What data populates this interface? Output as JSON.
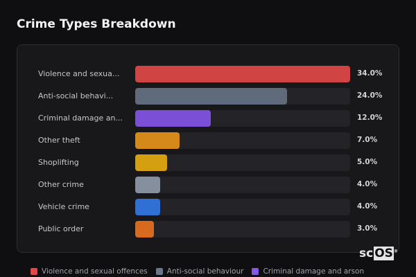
{
  "title": "Crime Types Breakdown",
  "chart_data": {
    "type": "bar",
    "orientation": "horizontal",
    "title": "Crime Types Breakdown",
    "categories": [
      "Violence and sexua...",
      "Anti-social behavi...",
      "Criminal damage an...",
      "Other theft",
      "Shoplifting",
      "Other crime",
      "Vehicle crime",
      "Public order"
    ],
    "values": [
      34.0,
      24.0,
      12.0,
      7.0,
      5.0,
      4.0,
      4.0,
      3.0
    ],
    "value_labels": [
      "34.0%",
      "24.0%",
      "12.0%",
      "7.0%",
      "5.0%",
      "4.0%",
      "4.0%",
      "3.0%"
    ],
    "colors": [
      "#d04444",
      "#5f6b7a",
      "#7b4fd6",
      "#d4891a",
      "#d4a012",
      "#868f9e",
      "#3070d4",
      "#d86a20"
    ],
    "xlim": [
      0,
      34
    ],
    "grid": false,
    "legend_position": "bottom"
  },
  "legend": [
    {
      "label": "Violence and sexual offences",
      "color": "#e04848"
    },
    {
      "label": "Anti-social behaviour",
      "color": "#6b7788"
    },
    {
      "label": "Criminal damage and arson",
      "color": "#8458e6"
    }
  ],
  "logo": {
    "text_plain": "sc",
    "text_box": "OS",
    "mark": "®"
  }
}
